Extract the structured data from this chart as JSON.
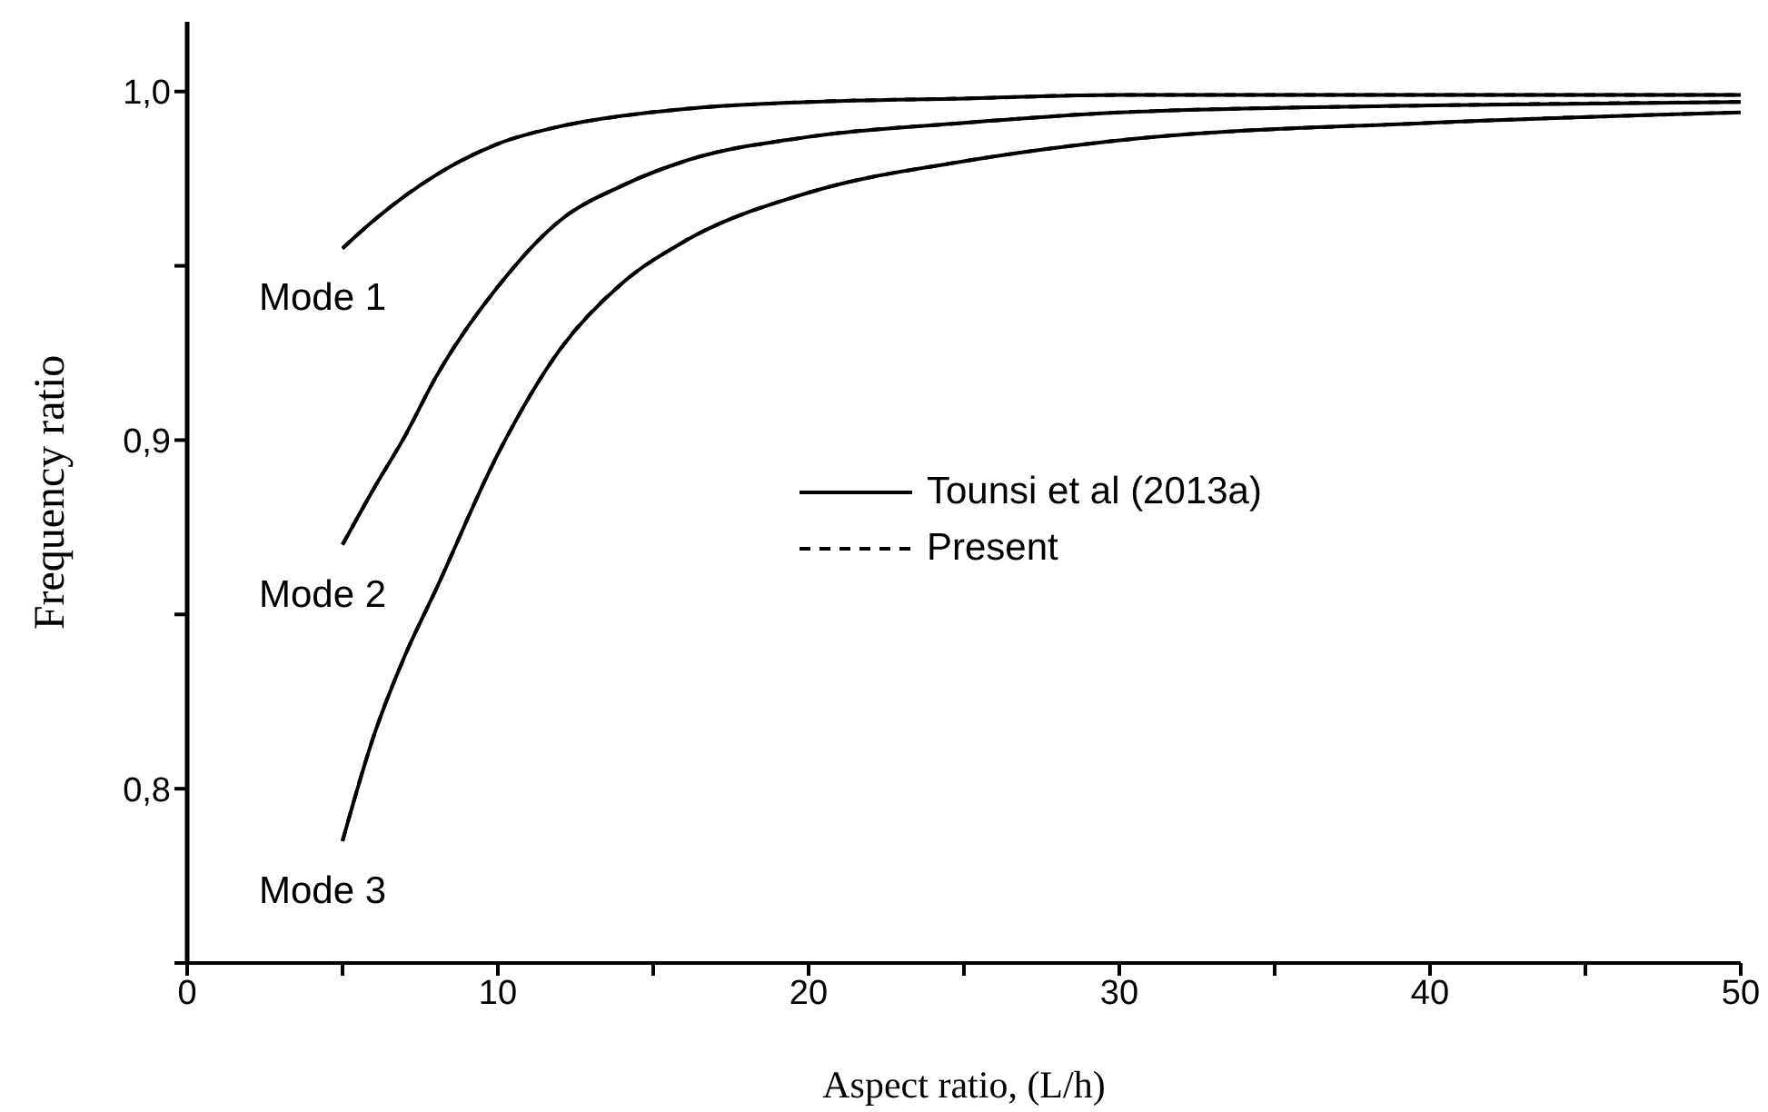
{
  "chart_data": {
    "type": "line",
    "xlabel": "Aspect ratio, (L/h)",
    "ylabel": "Frequency ratio",
    "x": [
      5,
      6,
      7,
      8,
      10,
      12,
      14,
      16,
      20,
      25,
      30,
      40,
      50
    ],
    "series": [
      {
        "name": "Tounsi et al (2013a)",
        "color": "#000000",
        "line_style": "solid",
        "values": [
          0.955,
          0.963,
          0.97,
          0.976,
          0.985,
          0.99,
          0.993,
          0.995,
          0.997,
          0.998,
          0.999,
          0.999,
          0.999
        ]
      },
      {
        "color": "#000000",
        "line_style": "solid",
        "values": [
          0.87,
          0.886,
          0.901,
          0.918,
          0.944,
          0.963,
          0.973,
          0.98,
          0.987,
          0.991,
          0.994,
          0.996,
          0.997
        ]
      },
      {
        "color": "#000000",
        "line_style": "solid",
        "values": [
          0.785,
          0.815,
          0.838,
          0.857,
          0.896,
          0.926,
          0.945,
          0.957,
          0.971,
          0.98,
          0.986,
          0.991,
          0.994
        ]
      },
      {
        "name": "Present",
        "color": "#000000",
        "line_style": "dashed",
        "values": [
          0.955,
          0.963,
          0.97,
          0.976,
          0.985,
          0.99,
          0.993,
          0.995,
          0.997,
          0.998,
          0.999,
          0.999,
          0.999
        ]
      },
      {
        "color": "#000000",
        "line_style": "dashed",
        "values": [
          0.87,
          0.886,
          0.901,
          0.918,
          0.944,
          0.963,
          0.973,
          0.98,
          0.987,
          0.991,
          0.994,
          0.996,
          0.997
        ]
      },
      {
        "color": "#000000",
        "line_style": "dashed",
        "values": [
          0.785,
          0.815,
          0.838,
          0.857,
          0.896,
          0.926,
          0.945,
          0.957,
          0.971,
          0.98,
          0.986,
          0.991,
          0.994
        ]
      }
    ],
    "xlim": [
      0,
      50
    ],
    "xticks": [
      0,
      {
        "value": 5,
        "label": null
      },
      10,
      {
        "value": 15,
        "label": null
      },
      20,
      {
        "value": 25,
        "label": null
      },
      30,
      {
        "value": 35,
        "label": null
      },
      40,
      {
        "value": 45,
        "label": null
      },
      50
    ],
    "ylim": [
      0.75,
      1.02
    ],
    "yticks": [
      {
        "value": 0.75,
        "label": null
      },
      {
        "value": 0.8,
        "label": "0,8"
      },
      {
        "value": 0.85,
        "label": null
      },
      {
        "value": 0.9,
        "label": "0,9"
      },
      {
        "value": 0.95,
        "label": null
      },
      {
        "value": 1.0,
        "label": "1,0"
      }
    ],
    "annotations": [
      "Mode 1",
      "Mode 2",
      "Mode 3"
    ],
    "legend": "center",
    "marker": "none"
  }
}
